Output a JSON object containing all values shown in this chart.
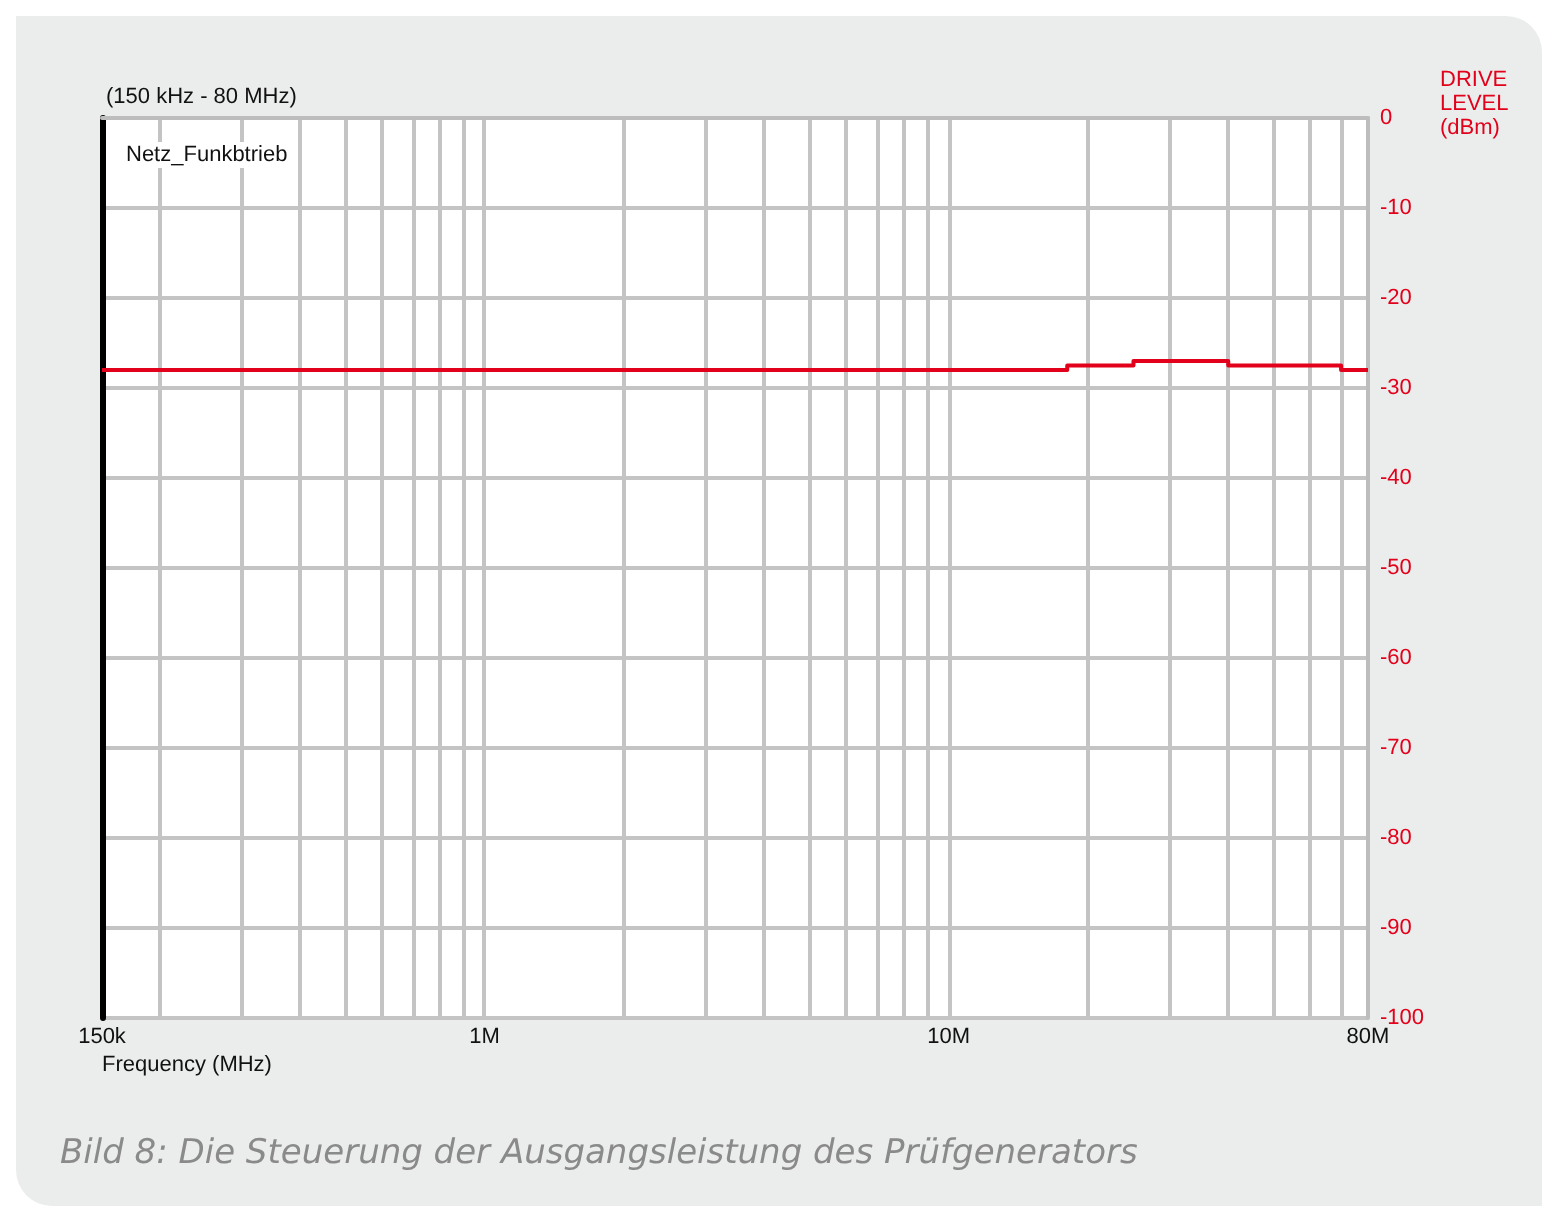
{
  "chart_data": {
    "type": "step",
    "title": "(150 kHz - 80 MHz)",
    "xlabel": "Frequency (MHz)",
    "ylabel": "DRIVE LEVEL (dBm)",
    "annotations": [
      "Netz_Funkbtrieb",
      "Bild 8: Die Steuerung der Ausgangsleistung des Prüfgenerators"
    ],
    "x": [
      150000,
      18000000,
      25000000,
      40000000,
      70000000,
      80000000
    ],
    "series": [
      {
        "color": "#e2001a",
        "values": [
          -28,
          -27.5,
          -27,
          -27.5,
          -28,
          -28
        ]
      }
    ],
    "log": "x",
    "xlim": [
      150000,
      80000000
    ],
    "xticks": [
      {
        "value": 150000,
        "label": "150k"
      },
      {
        "value": 200000,
        "label": null
      },
      {
        "value": 300000,
        "label": null
      },
      {
        "value": 400000,
        "label": null
      },
      {
        "value": 500000,
        "label": null
      },
      {
        "value": 600000,
        "label": null
      },
      {
        "value": 700000,
        "label": null
      },
      {
        "value": 800000,
        "label": null
      },
      {
        "value": 900000,
        "label": null
      },
      {
        "value": 1000000,
        "label": "1M"
      },
      {
        "value": 2000000,
        "label": null
      },
      {
        "value": 3000000,
        "label": null
      },
      {
        "value": 4000000,
        "label": null
      },
      {
        "value": 5000000,
        "label": null
      },
      {
        "value": 6000000,
        "label": null
      },
      {
        "value": 7000000,
        "label": null
      },
      {
        "value": 8000000,
        "label": null
      },
      {
        "value": 9000000,
        "label": null
      },
      {
        "value": 10000000,
        "label": "10M"
      },
      {
        "value": 20000000,
        "label": null
      },
      {
        "value": 30000000,
        "label": null
      },
      {
        "value": 40000000,
        "label": null
      },
      {
        "value": 50000000,
        "label": null
      },
      {
        "value": 60000000,
        "label": null
      },
      {
        "value": 70000000,
        "label": null
      },
      {
        "value": 80000000,
        "label": "80M"
      }
    ],
    "ylim": [
      -100,
      0
    ],
    "yticks": [
      0,
      -10,
      -20,
      -30,
      -40,
      -50,
      -60,
      -70,
      -80,
      -90,
      -100
    ],
    "grid": true,
    "marker": "none",
    "line_style": "solid"
  }
}
